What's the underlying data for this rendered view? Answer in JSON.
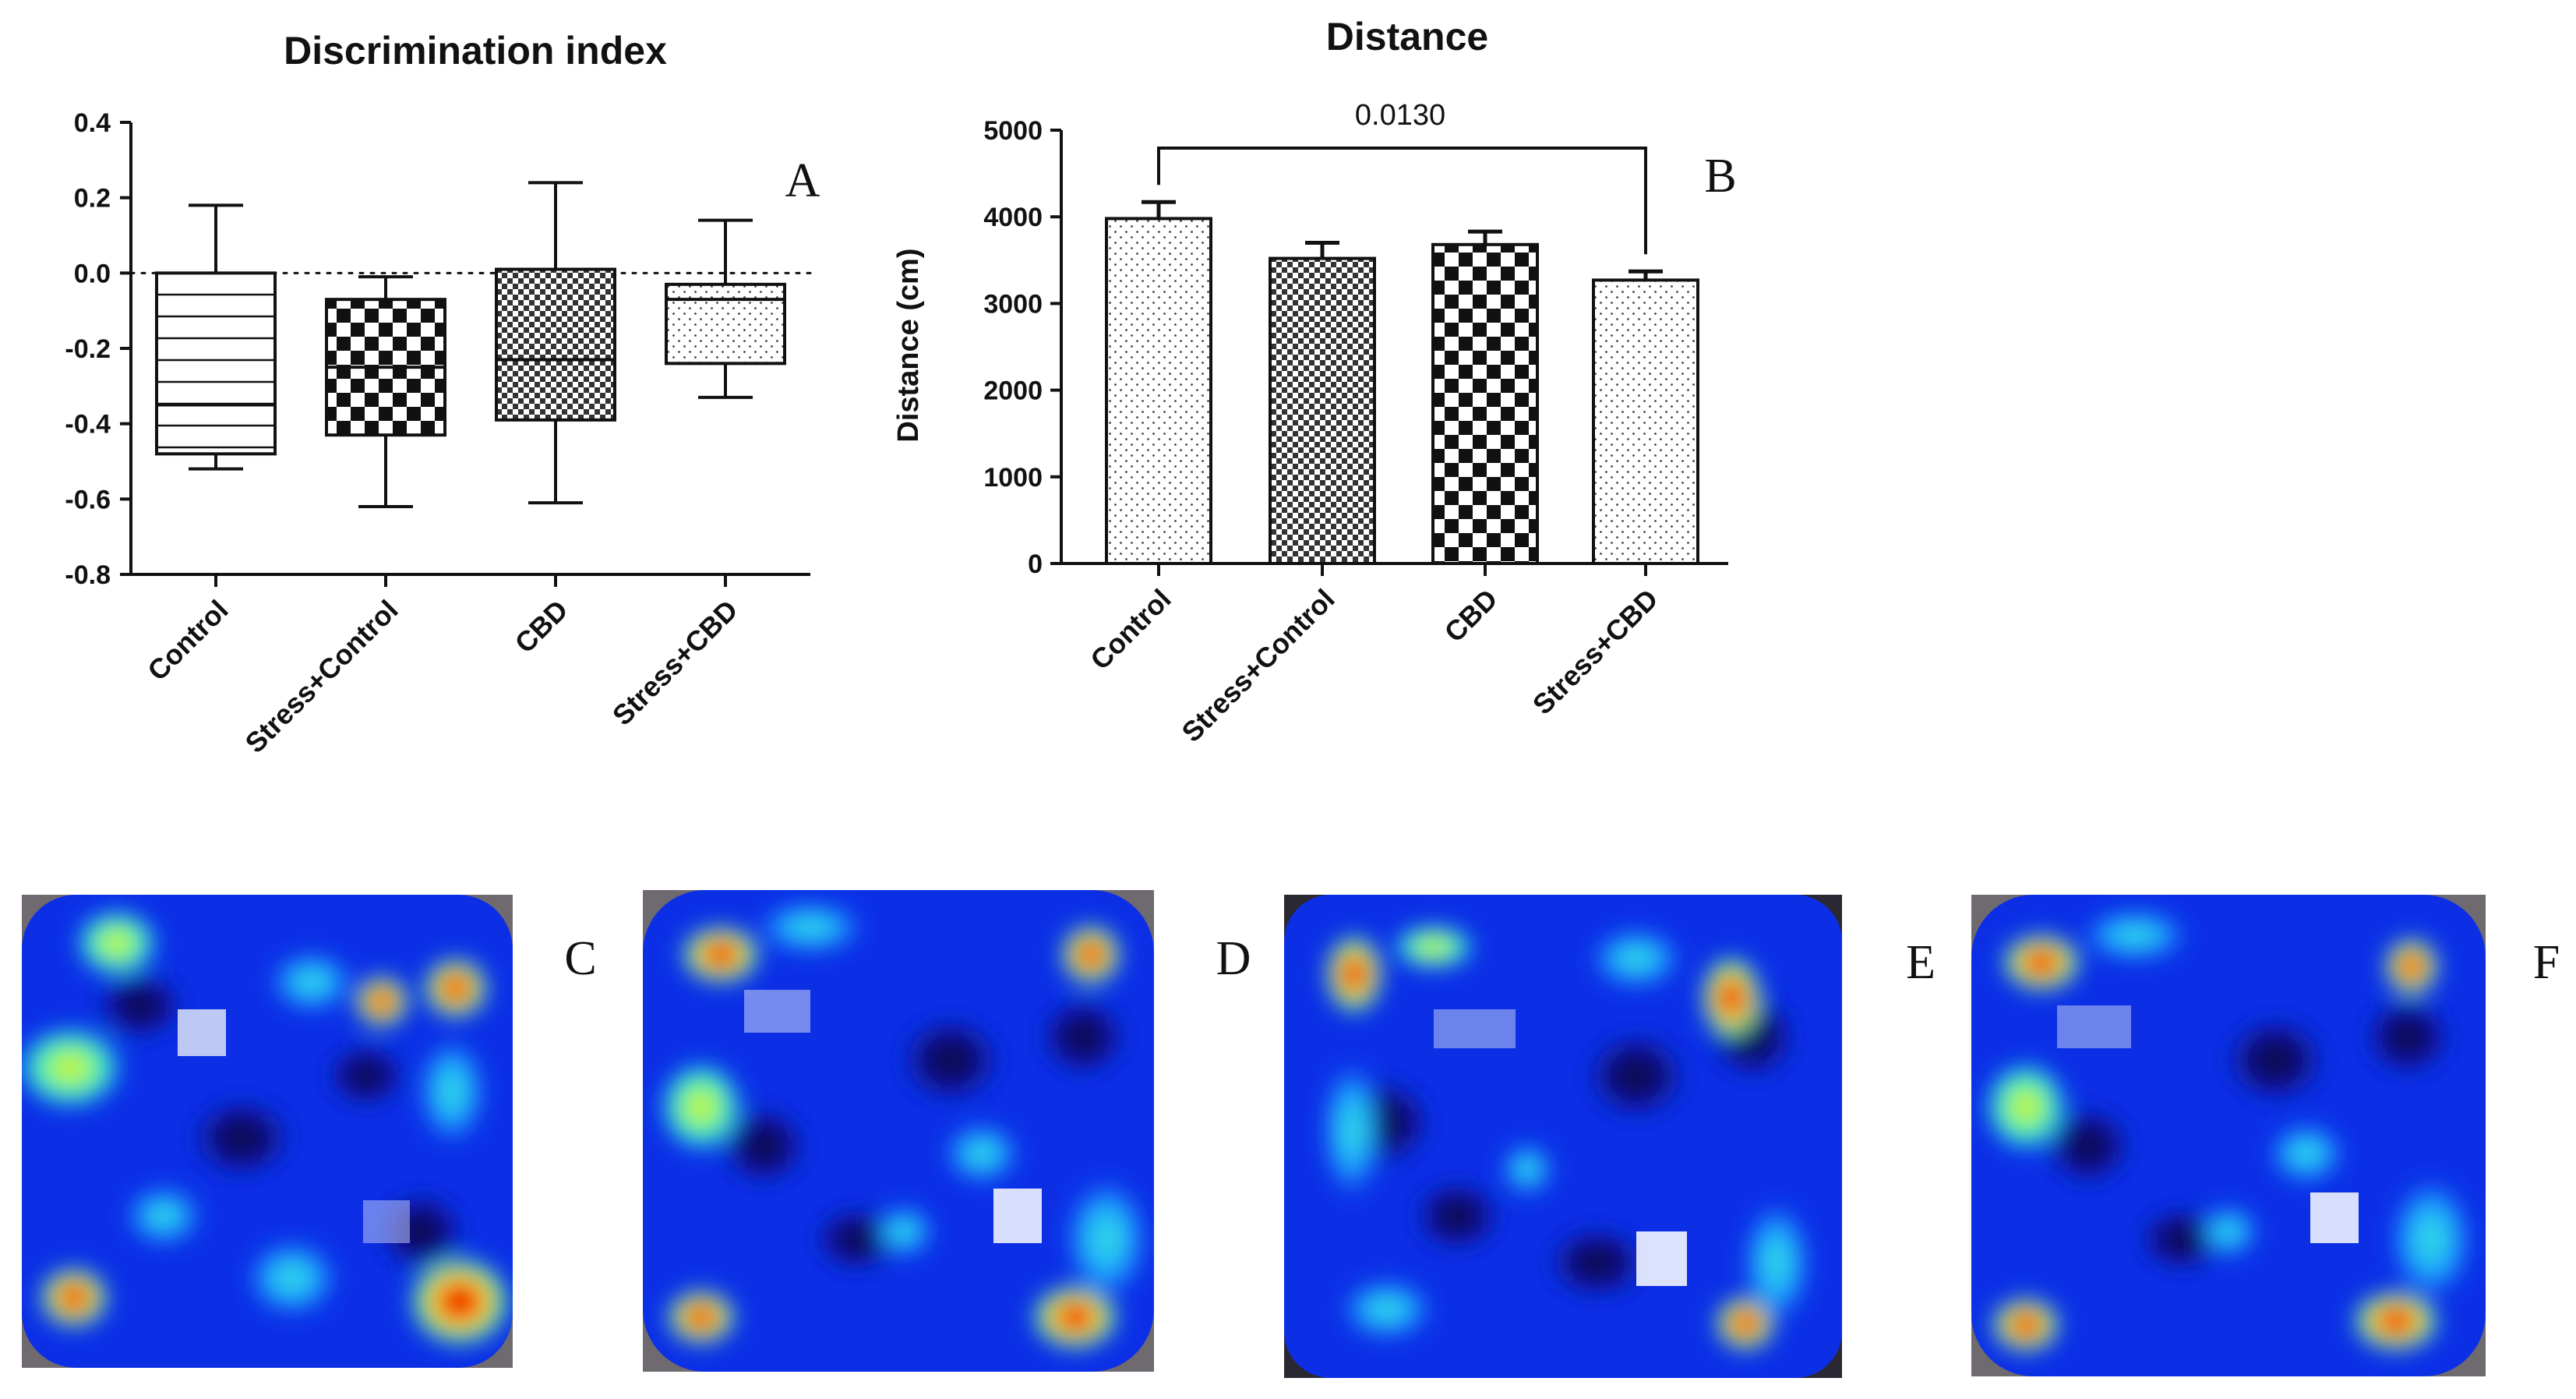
{
  "chart_data": [
    {
      "type": "box",
      "title": "Discrimination index",
      "panel_label": "A",
      "xlabel": "",
      "ylabel": "",
      "ylim": [
        -0.8,
        0.4
      ],
      "yticks": [
        0.4,
        0.2,
        0.0,
        -0.2,
        -0.4,
        -0.6,
        -0.8
      ],
      "ytick_labels": [
        "0.4",
        "0.2",
        "0.0",
        "-0.2",
        "-0.4",
        "-0.6",
        "-0.8"
      ],
      "reference_line": 0.0,
      "categories": [
        "Control",
        "Stress+Control",
        "CBD",
        "Stress+CBD"
      ],
      "boxes": [
        {
          "min": -0.52,
          "q1": -0.48,
          "median": -0.35,
          "q3": 0.0,
          "max": 0.18,
          "pattern": "hlines"
        },
        {
          "min": -0.62,
          "q1": -0.43,
          "median": -0.25,
          "q3": -0.07,
          "max": -0.01,
          "pattern": "checker"
        },
        {
          "min": -0.61,
          "q1": -0.39,
          "median": -0.23,
          "q3": 0.01,
          "max": 0.24,
          "pattern": "checker-fine"
        },
        {
          "min": -0.33,
          "q1": -0.24,
          "median": -0.07,
          "q3": -0.03,
          "max": 0.14,
          "pattern": "dots"
        }
      ]
    },
    {
      "type": "bar",
      "title": "Distance",
      "panel_label": "B",
      "xlabel": "",
      "ylabel": "Distance (cm)",
      "ylim": [
        0,
        5000
      ],
      "yticks": [
        5000,
        4000,
        3000,
        2000,
        1000,
        0
      ],
      "ytick_labels": [
        "5000",
        "4000",
        "3000",
        "2000",
        "1000",
        "0"
      ],
      "categories": [
        "Control",
        "Stress+Control",
        "CBD",
        "Stress+CBD"
      ],
      "values": [
        3980,
        3520,
        3680,
        3270
      ],
      "errors": [
        190,
        180,
        150,
        100
      ],
      "patterns": [
        "dots",
        "checker-fine",
        "checker",
        "dots"
      ],
      "significance": {
        "from": "Control",
        "to": "Stress+CBD",
        "label": "0.0130"
      }
    }
  ],
  "heatmaps": [
    {
      "label": "C"
    },
    {
      "label": "D"
    },
    {
      "label": "E"
    },
    {
      "label": "F"
    }
  ]
}
